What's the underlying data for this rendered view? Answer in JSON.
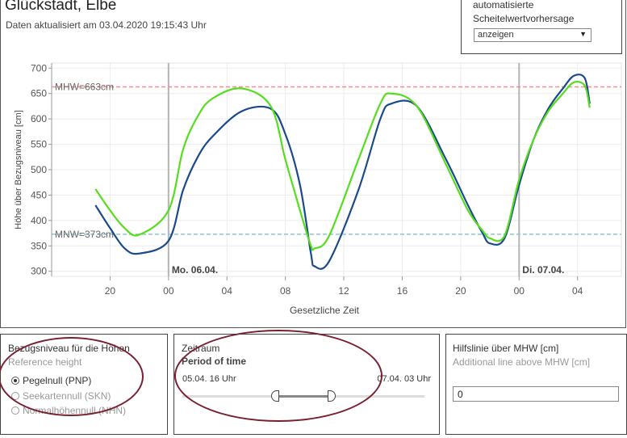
{
  "header": {
    "title": "Glückstadt, Elbe",
    "updated": "Daten aktualisiert am 03.04.2020 19:15:43 Uhr"
  },
  "forecast": {
    "label": "automatisierte Scheitelwertvorhersage",
    "select_value": "anzeigen"
  },
  "chart_data": {
    "type": "line",
    "ylabel": "Höhe über Bezugsniveau [cm]",
    "xlabel": "Gesetzliche Zeit",
    "ylim": [
      290,
      710
    ],
    "yticks": [
      300,
      350,
      400,
      450,
      500,
      550,
      600,
      650,
      700
    ],
    "xlim": [
      "05.04. 16:00",
      "07.04. 07:00"
    ],
    "xticks": [
      {
        "t": "05.04. 20:00",
        "label": "20"
      },
      {
        "t": "06.04. 00:00",
        "label": "00"
      },
      {
        "t": "06.04. 04:00",
        "label": "04"
      },
      {
        "t": "06.04. 08:00",
        "label": "08"
      },
      {
        "t": "06.04. 12:00",
        "label": "12"
      },
      {
        "t": "06.04. 16:00",
        "label": "16"
      },
      {
        "t": "06.04. 20:00",
        "label": "20"
      },
      {
        "t": "07.04. 00:00",
        "label": "00"
      },
      {
        "t": "07.04. 04:00",
        "label": "04"
      }
    ],
    "day_markers": [
      {
        "t": "06.04. 00:00",
        "label": "Mo. 06.04."
      },
      {
        "t": "07.04. 00:00",
        "label": "Di. 07.04."
      }
    ],
    "reference_lines": [
      {
        "label": "MHW=663cm",
        "value": 663,
        "color": "#f28b8b"
      },
      {
        "label": "MNW=373cm",
        "value": 373,
        "color": "#8ec5d1"
      }
    ],
    "grid": true,
    "series": [
      {
        "color": "#1a4a8c",
        "x": [
          "05.04. 19:00",
          "05.04. 20:00",
          "05.04. 21:00",
          "05.04. 22:00",
          "06.04. 00:00",
          "06.04. 01:00",
          "06.04. 02:00",
          "06.04. 03:00",
          "06.04. 05:00",
          "06.04. 07:00",
          "06.04. 08:00",
          "06.04. 09:00",
          "06.04. 09:45",
          "06.04. 10:00",
          "06.04. 11:00",
          "06.04. 13:00",
          "06.04. 14:30",
          "06.04. 15:15",
          "06.04. 17:00",
          "06.04. 19:00",
          "06.04. 20:30",
          "06.04. 21:30",
          "06.04. 22:00",
          "06.04. 23:00",
          "07.04. 00:00",
          "07.04. 01:00",
          "07.04. 02:00",
          "07.04. 03:00",
          "07.04. 03:45",
          "07.04. 04:30",
          "07.04. 04:50"
        ],
        "y": [
          430,
          385,
          345,
          335,
          360,
          460,
          525,
          565,
          615,
          620,
          570,
          470,
          335,
          310,
          320,
          460,
          600,
          630,
          625,
          520,
          430,
          375,
          355,
          365,
          470,
          560,
          620,
          660,
          685,
          680,
          630
        ]
      },
      {
        "color": "#55dd1e",
        "x": [
          "05.04. 19:00",
          "05.04. 20:00",
          "05.04. 21:00",
          "05.04. 22:00",
          "06.04. 00:00",
          "06.04. 01:00",
          "06.04. 02:00",
          "06.04. 03:00",
          "06.04. 05:00",
          "06.04. 07:00",
          "06.04. 08:00",
          "06.04. 09:00",
          "06.04. 09:45",
          "06.04. 10:00",
          "06.04. 11:00",
          "06.04. 13:00",
          "06.04. 14:30",
          "06.04. 15:15",
          "06.04. 17:00",
          "06.04. 19:00",
          "06.04. 20:30",
          "06.04. 21:30",
          "06.04. 22:00",
          "06.04. 23:00",
          "07.04. 00:00",
          "07.04. 01:00",
          "07.04. 02:00",
          "07.04. 03:00",
          "07.04. 03:45",
          "07.04. 04:30",
          "07.04. 04:50"
        ],
        "y": [
          462,
          420,
          385,
          372,
          420,
          540,
          605,
          640,
          660,
          625,
          520,
          420,
          350,
          345,
          370,
          520,
          630,
          650,
          625,
          510,
          420,
          380,
          365,
          370,
          480,
          560,
          615,
          650,
          672,
          665,
          622
        ]
      }
    ]
  },
  "reference_panel": {
    "title": "Bezugsniveau für die Höhen",
    "subtitle": "Reference height",
    "options": [
      {
        "label": "Pegelnull (PNP)",
        "selected": true
      },
      {
        "label": "Seekartennull (SKN)",
        "selected": false
      },
      {
        "label": "Normalhöhennull (NHN)",
        "selected": false
      }
    ]
  },
  "time_panel": {
    "title": "Zeitraum",
    "subtitle": "Period of time",
    "start": "05.04. 16 Uhr",
    "end": "07.04. 03 Uhr",
    "range_start_fraction": 0.4,
    "range_end_fraction": 0.6
  },
  "mhw_panel": {
    "title": "Hilfslinie über MHW [cm]",
    "subtitle": "Additional line above MHW [cm]",
    "value": "0"
  }
}
